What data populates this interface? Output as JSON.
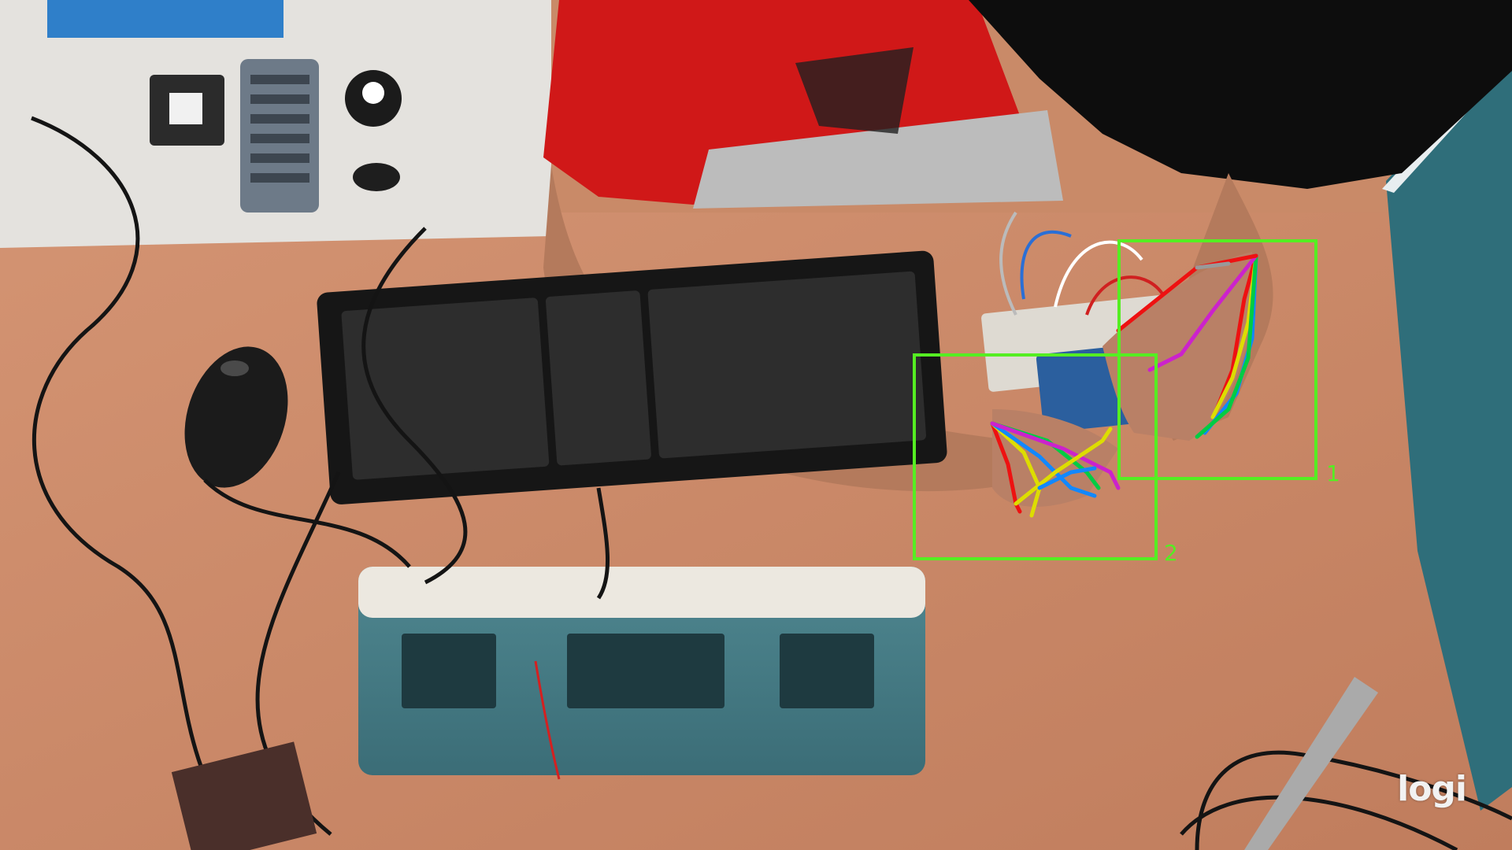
{
  "detections": [
    {
      "label": "1"
    },
    {
      "label": "2"
    }
  ],
  "watermark": "logi",
  "colors": {
    "box": "#55ee22",
    "desk": "#c98a68",
    "shirt": "#d01818",
    "skin": "#b07a60"
  },
  "finger_colors": [
    "#ee1111",
    "#dddd00",
    "#00cc44",
    "#1188ff",
    "#cc22cc"
  ]
}
